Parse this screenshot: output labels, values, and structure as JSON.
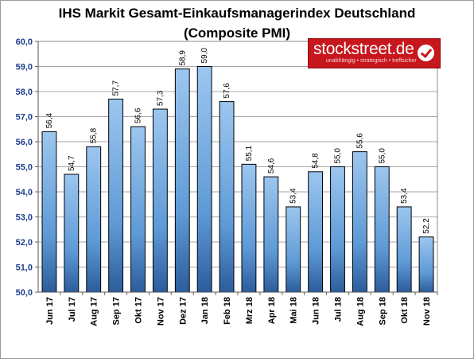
{
  "title_line1": "IHS Markit Gesamt-Einkaufsmanagerindex Deutschland",
  "title_line2": "(Composite PMI)",
  "logo": {
    "text": "stockstreet.de",
    "tagline": "unabhängig • strategisch • treffsicher",
    "icon": "checkmark-icon",
    "color": "#c8161d"
  },
  "chart_data": {
    "type": "bar",
    "title": "IHS Markit Gesamt-Einkaufsmanagerindex Deutschland (Composite PMI)",
    "xlabel": "",
    "ylabel": "",
    "categories": [
      "Jun 17",
      "Jul 17",
      "Aug 17",
      "Sep 17",
      "Okt 17",
      "Nov 17",
      "Dez 17",
      "Jan 18",
      "Feb 18",
      "Mrz 18",
      "Apr 18",
      "Mai 18",
      "Jun 18",
      "Jul 18",
      "Aug 18",
      "Sep 18",
      "Okt 18",
      "Nov 18"
    ],
    "values": [
      56.4,
      54.7,
      55.8,
      57.7,
      56.6,
      57.3,
      58.9,
      59.0,
      57.6,
      55.1,
      54.6,
      53.4,
      54.8,
      55.0,
      55.6,
      55.0,
      53.4,
      52.2
    ],
    "value_labels": [
      "56,4",
      "54,7",
      "55,8",
      "57,7",
      "56,6",
      "57,3",
      "58,9",
      "59,0",
      "57,6",
      "55,1",
      "54,6",
      "53,4",
      "54,8",
      "55,0",
      "55,6",
      "55,0",
      "53,4",
      "52,2"
    ],
    "ylim": [
      50,
      60
    ],
    "yticks": [
      50,
      51,
      52,
      53,
      54,
      55,
      56,
      57,
      58,
      59,
      60
    ],
    "ytick_labels": [
      "50,0",
      "51,0",
      "52,0",
      "53,0",
      "54,0",
      "55,0",
      "56,0",
      "57,0",
      "58,0",
      "59,0",
      "60,0"
    ],
    "grid": true,
    "legend": "none",
    "bar_color": "#5b9bd5",
    "tick_label_color": "#1f3f8f"
  }
}
